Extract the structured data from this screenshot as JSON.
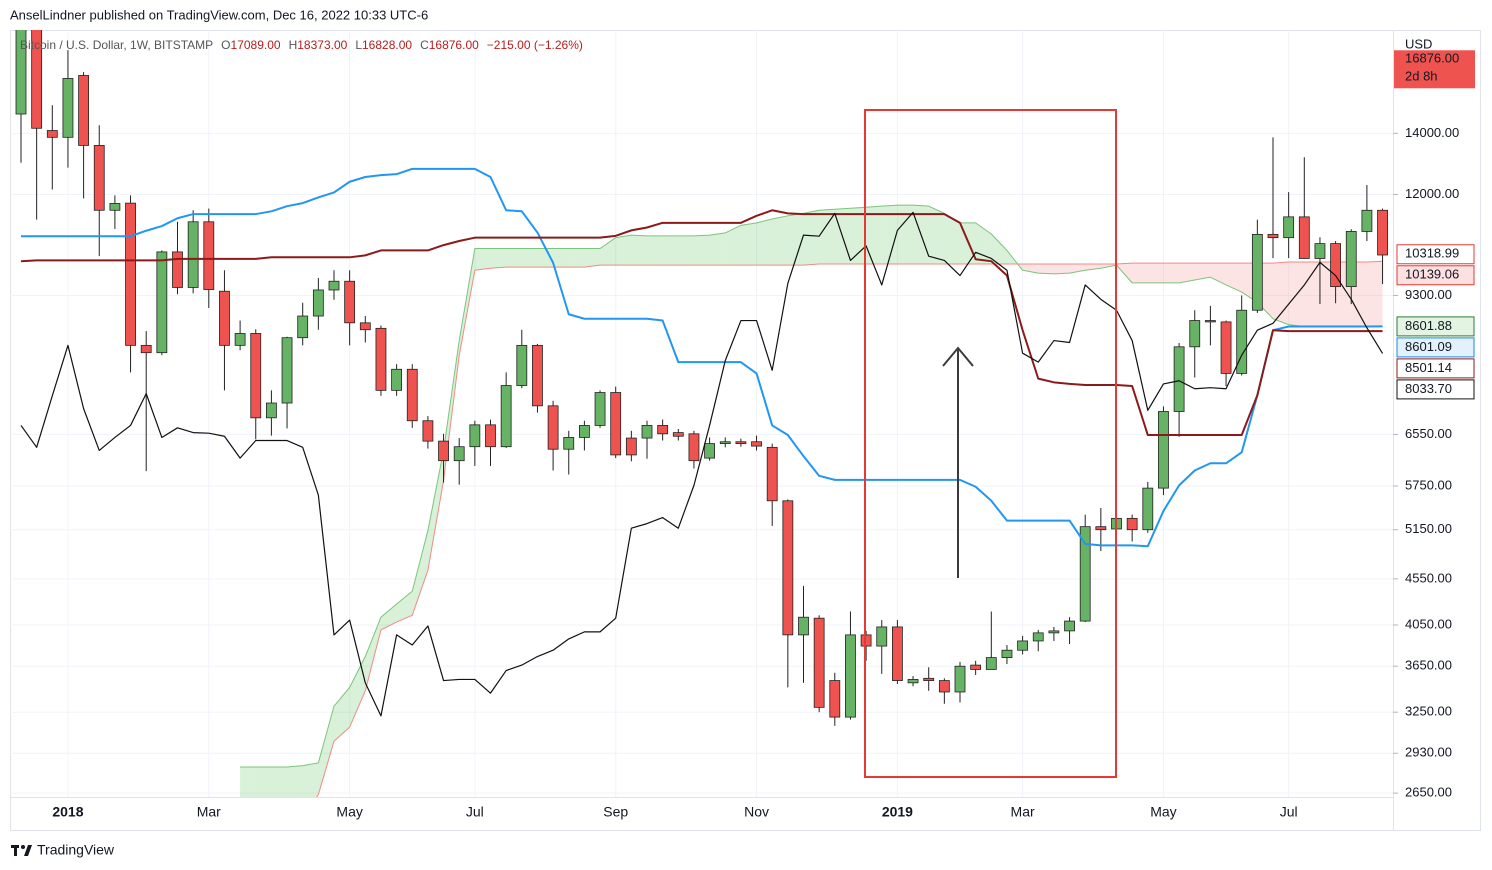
{
  "attribution": "AnselLindner published on TradingView.com, Dec 16, 2022 10:33 UTC-6",
  "footer": "TradingView",
  "chart_data": {
    "type": "candlestick",
    "symbol": "Bitcoin / U.S. Dollar, 1W, BITSTAMP",
    "ohlc": [
      {
        "key": "O",
        "value": "17089.00"
      },
      {
        "key": "H",
        "value": "18373.00"
      },
      {
        "key": "L",
        "value": "16828.00"
      },
      {
        "key": "C",
        "value": "16876.00"
      }
    ],
    "change": "−215.00 (−1.26%)",
    "y_unit": "USD",
    "log": true,
    "grid": true,
    "up_color": "#66b366",
    "down_color": "#ef5350",
    "ylim": [
      2624,
      18170
    ],
    "yticks": [
      {
        "value": 2650,
        "label": "2650.00"
      },
      {
        "value": 2930,
        "label": "2930.00"
      },
      {
        "value": 3250,
        "label": "3250.00"
      },
      {
        "value": 3650,
        "label": "3650.00"
      },
      {
        "value": 4050,
        "label": "4050.00"
      },
      {
        "value": 4550,
        "label": "4550.00"
      },
      {
        "value": 5150,
        "label": "5150.00"
      },
      {
        "value": 5750,
        "label": "5750.00"
      },
      {
        "value": 6550,
        "label": "6550.00"
      },
      {
        "value": 9300,
        "label": "9300.00"
      },
      {
        "value": 12000,
        "label": "12000.00"
      },
      {
        "value": 14000,
        "label": "14000.00"
      }
    ],
    "categories": [
      null,
      null,
      null,
      "2018",
      null,
      null,
      null,
      null,
      null,
      null,
      null,
      null,
      "Mar",
      null,
      null,
      null,
      null,
      null,
      null,
      null,
      null,
      "May",
      null,
      null,
      null,
      null,
      null,
      null,
      null,
      "Jul",
      null,
      null,
      null,
      null,
      null,
      null,
      null,
      null,
      "Sep",
      null,
      null,
      null,
      null,
      null,
      null,
      null,
      null,
      "Nov",
      null,
      null,
      null,
      null,
      null,
      null,
      null,
      null,
      "2019",
      null,
      null,
      null,
      null,
      null,
      null,
      null,
      "Mar",
      null,
      null,
      null,
      null,
      null,
      null,
      null,
      null,
      "May",
      null,
      null,
      null,
      null,
      null,
      null,
      null,
      "Jul",
      null,
      null,
      null,
      null,
      null,
      null
    ],
    "open": [
      14700,
      19000,
      14100,
      13860,
      16200,
      13580,
      11530,
      11740,
      8200,
      8050,
      10380,
      9490,
      11200,
      9400,
      8200,
      8450,
      6830,
      7090,
      8360,
      8830,
      9430,
      9640,
      8680,
      8560,
      7320,
      7720,
      6780,
      6440,
      6130,
      6350,
      6710,
      6350,
      7410,
      8200,
      7040,
      6310,
      6500,
      6700,
      7280,
      6490,
      6490,
      6700,
      6580,
      6560,
      6170,
      6400,
      6430,
      6430,
      6340,
      5540,
      3950,
      4120,
      3520,
      3210,
      3950,
      3840,
      4030,
      3500,
      3540,
      3520,
      3420,
      3660,
      3620,
      3730,
      3800,
      3890,
      3970,
      3990,
      4090,
      5190,
      5160,
      5300,
      5150,
      5720,
      6940,
      8170,
      8730,
      8700,
      7640,
      8960,
      10850,
      10760,
      11340,
      10210,
      10600,
      9510,
      10930,
      11530
    ],
    "high": [
      19700,
      19600,
      15030,
      17270,
      16340,
      14290,
      11970,
      11970,
      8500,
      10420,
      11200,
      11530,
      11580,
      9910,
      8730,
      8540,
      7320,
      8380,
      9130,
      9720,
      9910,
      9910,
      8830,
      8620,
      7820,
      7820,
      6860,
      6560,
      6490,
      6780,
      6800,
      7660,
      8530,
      8230,
      7130,
      6610,
      6780,
      7320,
      7390,
      6610,
      6780,
      6800,
      6640,
      6610,
      6500,
      6500,
      6480,
      6530,
      6400,
      5560,
      4470,
      4150,
      3590,
      4190,
      3990,
      4100,
      4100,
      3560,
      3640,
      3540,
      3690,
      3700,
      4190,
      3850,
      3940,
      4000,
      4030,
      4130,
      5350,
      5440,
      5570,
      5350,
      5810,
      7030,
      8250,
      8960,
      9060,
      8730,
      9300,
      11260,
      13860,
      12070,
      13180,
      10770,
      10670,
      10990,
      12290,
      11580
    ],
    "low": [
      13000,
      11260,
      12150,
      12840,
      11880,
      10270,
      11000,
      7660,
      5970,
      8000,
      9330,
      9350,
      9010,
      7320,
      8100,
      6470,
      6530,
      6650,
      8200,
      8530,
      9200,
      8200,
      8260,
      7220,
      7220,
      6660,
      6320,
      5800,
      5770,
      6050,
      6050,
      6330,
      7360,
      6920,
      5980,
      5920,
      6290,
      6660,
      6170,
      6120,
      6160,
      6450,
      6450,
      6010,
      6130,
      6340,
      6350,
      6290,
      5200,
      3460,
      3500,
      3250,
      3140,
      3190,
      3700,
      3580,
      3490,
      3470,
      3430,
      3320,
      3330,
      3570,
      3620,
      3670,
      3760,
      3790,
      3890,
      3860,
      4080,
      4880,
      5020,
      5000,
      5110,
      5620,
      6510,
      7560,
      8200,
      7400,
      7600,
      8900,
      10220,
      10220,
      10200,
      9100,
      9120,
      9100,
      10670,
      9570
    ],
    "close": [
      19000,
      14180,
      13860,
      16080,
      13580,
      11530,
      11730,
      8200,
      8050,
      10380,
      9490,
      11200,
      9440,
      8200,
      8450,
      6830,
      7090,
      8360,
      8830,
      9430,
      9640,
      8680,
      8530,
      7320,
      7720,
      6780,
      6440,
      6130,
      6350,
      6710,
      6350,
      7410,
      8200,
      7040,
      6310,
      6500,
      6700,
      7280,
      6220,
      6220,
      6700,
      6560,
      6520,
      6130,
      6400,
      6430,
      6400,
      6360,
      5540,
      3950,
      4130,
      3290,
      3210,
      3950,
      3840,
      4030,
      3520,
      3530,
      3520,
      3420,
      3650,
      3620,
      3730,
      3800,
      3890,
      3970,
      3990,
      4090,
      5190,
      5150,
      5300,
      5150,
      5720,
      6940,
      8170,
      8730,
      8700,
      7640,
      8960,
      10850,
      10760,
      11340,
      10210,
      10600,
      9510,
      10930,
      11530,
      10300
    ],
    "series": [
      {
        "color": "#7cc47c",
        "fill": "rgba(120,200,120,0.28)",
        "values": [
          null,
          null,
          null,
          null,
          null,
          null,
          null,
          null,
          null,
          null,
          null,
          null,
          null,
          null,
          2830,
          2830,
          2830,
          2830,
          2840,
          2860,
          3300,
          3460,
          3740,
          4130,
          4270,
          4410,
          5140,
          6290,
          8300,
          10470,
          10470,
          10470,
          10470,
          10470,
          10470,
          10470,
          10470,
          10470,
          10760,
          10830,
          10810,
          10810,
          10810,
          10810,
          10830,
          10890,
          11100,
          11170,
          11280,
          11370,
          11440,
          11530,
          11560,
          11590,
          11620,
          11650,
          11680,
          11680,
          11650,
          11440,
          11170,
          11170,
          10860,
          10420,
          9910,
          9840,
          9820,
          9840,
          9910,
          9960,
          10040,
          9600,
          9600,
          9600,
          9600,
          9670,
          9740,
          9550,
          9380,
          9140,
          8770,
          8640,
          8600,
          8600,
          8600,
          8600,
          8600,
          8601.88
        ]
      },
      {
        "color": "#f28b82",
        "fill": "rgba(244,143,143,0.24)",
        "values": [
          null,
          null,
          null,
          null,
          null,
          null,
          null,
          null,
          null,
          null,
          null,
          null,
          null,
          null,
          2400,
          2400,
          2400,
          2450,
          2500,
          2640,
          3020,
          3130,
          3430,
          4000,
          4080,
          4150,
          4650,
          5830,
          7990,
          9910,
          9960,
          9990,
          9990,
          9990,
          9990,
          9990,
          9990,
          10040,
          10040,
          10040,
          10040,
          10040,
          10040,
          10040,
          10040,
          10040,
          10040,
          10040,
          10040,
          10040,
          10040,
          10070,
          10070,
          10070,
          10070,
          10070,
          10070,
          10070,
          10070,
          10070,
          10070,
          10070,
          10070,
          10070,
          10070,
          10070,
          10070,
          10070,
          10070,
          10070,
          10070,
          10090,
          10090,
          10090,
          10090,
          10090,
          10090,
          10090,
          10090,
          10090,
          10090,
          10120,
          10120,
          10120,
          10120,
          10120,
          10120,
          10139.06
        ]
      },
      {
        "color": "#2196f3",
        "values": [
          10800,
          10800,
          10800,
          10800,
          10800,
          10800,
          10800,
          10800,
          10950,
          11080,
          11300,
          11420,
          11420,
          11420,
          11420,
          11420,
          11500,
          11650,
          11740,
          11910,
          12060,
          12390,
          12540,
          12600,
          12630,
          12800,
          12800,
          12800,
          12800,
          12800,
          12540,
          11530,
          11500,
          10900,
          10100,
          8870,
          8770,
          8770,
          8770,
          8770,
          8770,
          8730,
          7860,
          7860,
          7860,
          7860,
          7860,
          7640,
          6700,
          6540,
          6200,
          5900,
          5840,
          5840,
          5840,
          5840,
          5840,
          5840,
          5840,
          5840,
          5840,
          5740,
          5540,
          5270,
          5270,
          5270,
          5270,
          5270,
          4970,
          4950,
          4950,
          4950,
          4940,
          5400,
          5760,
          5980,
          6090,
          6090,
          6260,
          7230,
          8520,
          8600,
          8600,
          8600,
          8600,
          8600,
          8600,
          8601.09
        ]
      },
      {
        "color": "#8b1a1a",
        "values": [
          10140,
          10160,
          10160,
          10160,
          10160,
          10160,
          10160,
          10160,
          10160,
          10160,
          10200,
          10200,
          10200,
          10200,
          10200,
          10200,
          10240,
          10240,
          10240,
          10240,
          10240,
          10240,
          10290,
          10420,
          10420,
          10420,
          10420,
          10560,
          10670,
          10760,
          10760,
          10760,
          10760,
          10760,
          10760,
          10760,
          10760,
          10760,
          10810,
          10960,
          11040,
          11170,
          11170,
          11170,
          11170,
          11170,
          11170,
          11370,
          11530,
          11440,
          11420,
          11420,
          11420,
          11420,
          11420,
          11420,
          11420,
          11420,
          11420,
          11420,
          11170,
          10190,
          10140,
          9780,
          8520,
          7540,
          7470,
          7440,
          7420,
          7420,
          7420,
          7400,
          6540,
          6540,
          6540,
          6540,
          6540,
          6540,
          6540,
          7230,
          8520,
          8500,
          8500,
          8500,
          8500,
          8500,
          8500,
          8501.14
        ]
      },
      {
        "color": "#111111",
        "values": [
          6700,
          6340,
          7220,
          8200,
          6990,
          6290,
          6500,
          6700,
          7260,
          6500,
          6660,
          6580,
          6570,
          6520,
          6170,
          6450,
          6450,
          6450,
          6340,
          5620,
          3950,
          4100,
          3500,
          3220,
          3950,
          3850,
          4040,
          3520,
          3530,
          3530,
          3410,
          3610,
          3660,
          3740,
          3800,
          3910,
          3980,
          3980,
          4120,
          5170,
          5230,
          5310,
          5170,
          5760,
          6700,
          7890,
          8730,
          8730,
          7700,
          9590,
          10830,
          10800,
          11440,
          10160,
          10540,
          9550,
          10960,
          11470,
          10270,
          10160,
          9780,
          10370,
          10210,
          9910,
          8040,
          7860,
          8300,
          8260,
          9550,
          9210,
          8960,
          8300,
          6960,
          7440,
          7500,
          7350,
          7370,
          7350,
          8000,
          8520,
          8670,
          9100,
          9550,
          10110,
          9780,
          9210,
          8570,
          8033.7
        ]
      }
    ],
    "current_price": {
      "value": 16876,
      "label": "16876.00",
      "countdown": "2d 8h",
      "color": "#ef5350"
    },
    "price_tags": [
      {
        "value": 10318.99,
        "label": "10318.99",
        "color": "#e53935",
        "background": "#ffffff"
      },
      {
        "value": 10139.06,
        "label": "10139.06",
        "color": "#e53935",
        "background": "#fde0e0"
      },
      {
        "value": 8601.88,
        "label": "8601.88",
        "color": "#2e7d32",
        "background": "#e3f4e3"
      },
      {
        "value": 8601.09,
        "label": "8601.09",
        "color": "#1e88e5",
        "background": "#e3f1fd"
      },
      {
        "value": 8501.14,
        "label": "8501.14",
        "color": "#8b1a1a",
        "background": "#ffffff"
      },
      {
        "value": 8033.7,
        "label": "8033.70",
        "color": "#111111",
        "background": "#ffffff"
      }
    ]
  }
}
